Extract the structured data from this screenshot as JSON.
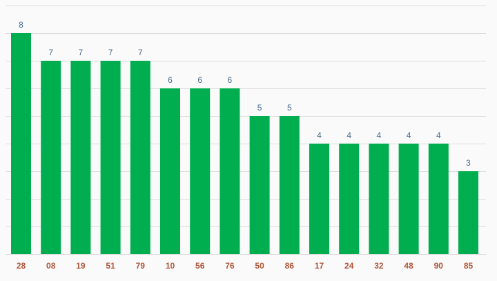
{
  "chart_data": {
    "type": "bar",
    "categories": [
      "28",
      "08",
      "19",
      "51",
      "79",
      "10",
      "56",
      "76",
      "50",
      "86",
      "17",
      "24",
      "32",
      "48",
      "90",
      "85"
    ],
    "values": [
      8,
      7,
      7,
      7,
      7,
      6,
      6,
      6,
      5,
      5,
      4,
      4,
      4,
      4,
      4,
      3
    ],
    "title": "",
    "xlabel": "",
    "ylabel": "",
    "ylim": [
      0,
      9
    ],
    "grid": true,
    "data_labels": true,
    "colors": {
      "bar": "#00ae4f",
      "value_label": "#4a6d8c",
      "tick_label": "#b0563a",
      "grid": "#dcdcdc",
      "background": "#fafafa"
    }
  }
}
